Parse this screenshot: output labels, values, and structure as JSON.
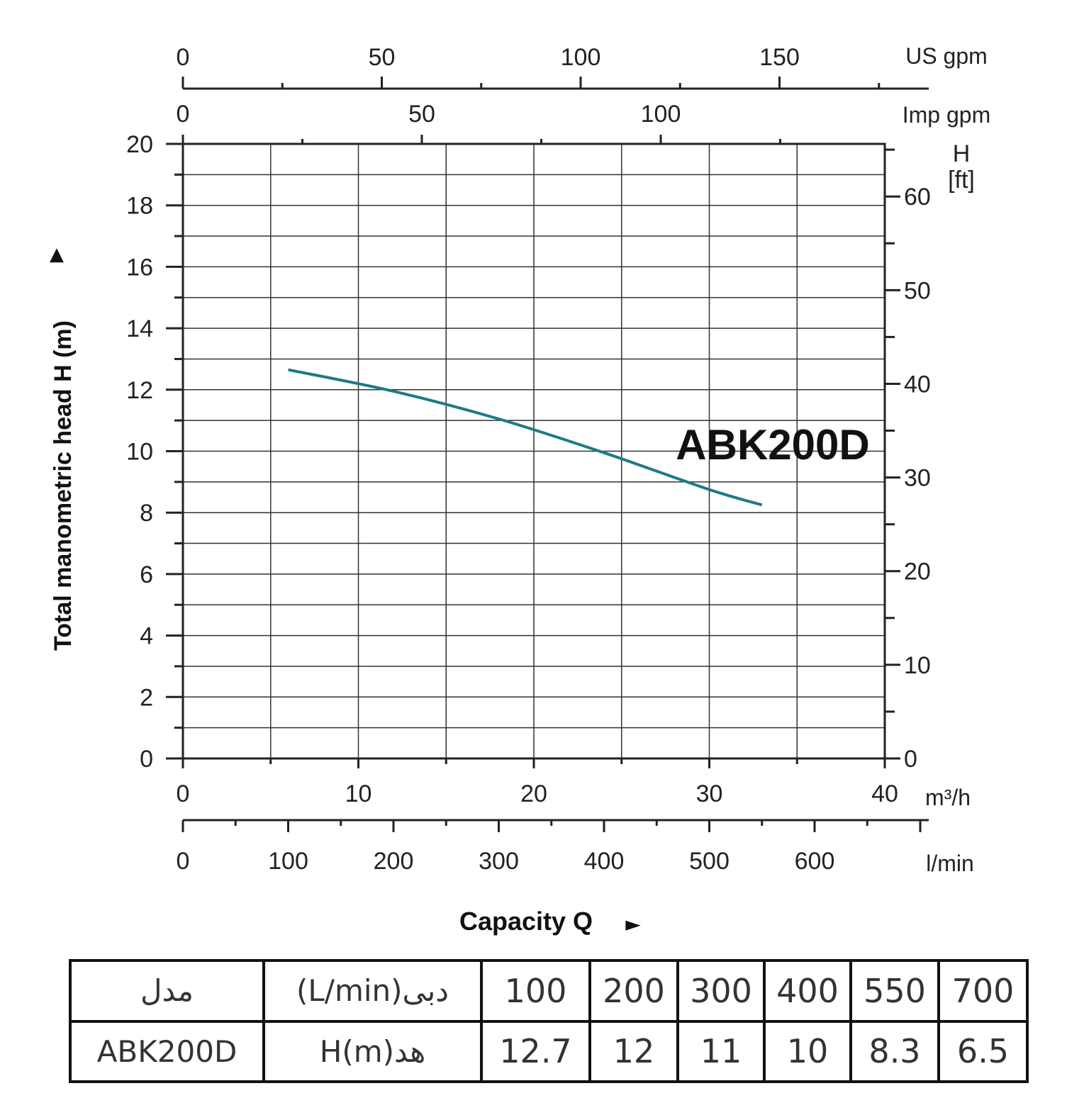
{
  "chart_data": {
    "type": "line",
    "model_label": "ABK200D",
    "x_axis": {
      "unit": "m³/h",
      "ticks": [
        "0",
        "10",
        "20",
        "30",
        "40"
      ],
      "range": [
        0,
        40
      ]
    },
    "y_axis": {
      "label": "Total manometric head H (m)",
      "ticks": [
        "0",
        "2",
        "4",
        "6",
        "8",
        "10",
        "12",
        "14",
        "16",
        "18",
        "20"
      ],
      "range": [
        0,
        20
      ]
    },
    "y_axis_right": {
      "label_line1": "H",
      "label_line2": "[ft]",
      "ticks": [
        "0",
        "10",
        "20",
        "30",
        "40",
        "50",
        "60"
      ]
    },
    "top_axis_us": {
      "unit": "US gpm",
      "ticks": [
        "0",
        "50",
        "100",
        "150"
      ]
    },
    "top_axis_imp": {
      "unit": "Imp gpm",
      "ticks": [
        "0",
        "50",
        "100"
      ]
    },
    "bottom_axis_lmin": {
      "unit": "l/min",
      "ticks": [
        "0",
        "100",
        "200",
        "300",
        "400",
        "500",
        "600"
      ]
    },
    "xlabel": "Capacity Q",
    "arrow_symbol": "►",
    "up_arrow_symbol": "▲",
    "line_color": "#1f7a84",
    "series": [
      {
        "name": "ABK200D",
        "x": [
          6,
          12,
          18,
          24,
          30,
          33
        ],
        "y": [
          12.65,
          11.95,
          11.05,
          9.95,
          8.75,
          8.25
        ]
      }
    ]
  },
  "table": {
    "header": {
      "model_label": "مدل",
      "flow_label": "دبی(L/min)",
      "flows": [
        "100",
        "200",
        "300",
        "400",
        "550",
        "700"
      ]
    },
    "row": {
      "model": "ABK200D",
      "head_label": "هد(H(m",
      "heads": [
        "12.7",
        "12",
        "11",
        "10",
        "8.3",
        "6.5"
      ]
    }
  }
}
